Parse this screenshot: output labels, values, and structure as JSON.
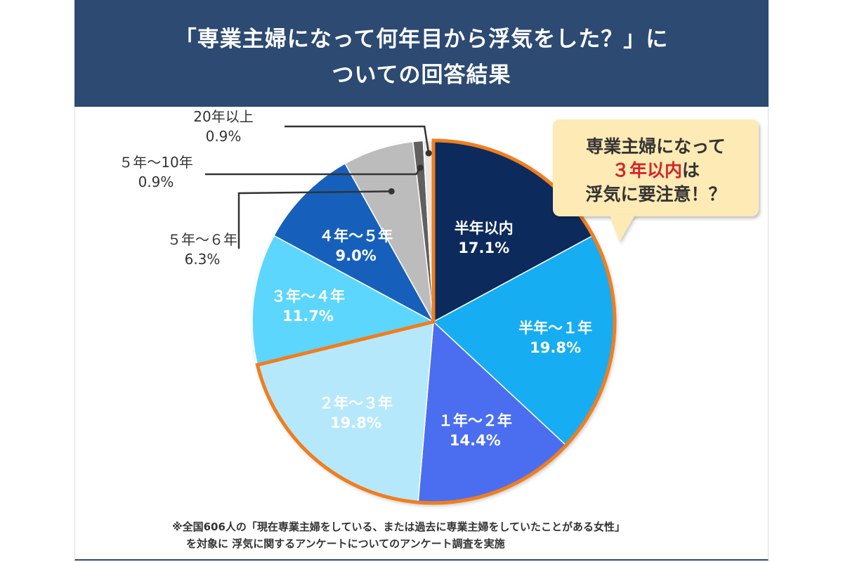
{
  "header": {
    "title_line1": "「専業主婦になって何年目から浮気をした？」に",
    "title_line2": "ついての回答結果"
  },
  "callout": {
    "line1": "専業主婦になって",
    "line2_highlight": "３年以内",
    "line2_rest": "は",
    "line3": "浮気に要注意！？"
  },
  "footnote": {
    "line1": "※全国606人の「現在専業主婦をしている、または過去に専業主婦をしていたことがある女性」",
    "line2": "を対象に 浮気に関するアンケートについてのアンケート調査を実施"
  },
  "colors": {
    "header_bg": "#2c4a72",
    "highlight_outline": "#f07e1e",
    "callout_bg": "#fdeab4",
    "callout_highlight": "#d0252b"
  },
  "chart_data": {
    "type": "pie",
    "unit": "%",
    "start": "12 o'clock",
    "direction": "clockwise",
    "highlighted_group": [
      "半年以内",
      "半年～１年",
      "１年～２年",
      "２年～３年"
    ],
    "slices": [
      {
        "label": "半年以内",
        "value": 17.1,
        "display": "17.1%",
        "color": "#0c2b5c",
        "text_color": "#ffffff",
        "label_position": "inside"
      },
      {
        "label": "半年～１年",
        "value": 19.8,
        "display": "19.8%",
        "color": "#15adf3",
        "text_color": "#ffffff",
        "label_position": "inside"
      },
      {
        "label": "１年～２年",
        "value": 14.4,
        "display": "14.4%",
        "color": "#4b6ef0",
        "text_color": "#ffffff",
        "label_position": "inside"
      },
      {
        "label": "２年～３年",
        "value": 19.8,
        "display": "19.8%",
        "color": "#b6e8fc",
        "text_color": "#ffffff",
        "label_position": "inside"
      },
      {
        "label": "３年～４年",
        "value": 11.7,
        "display": "11.7%",
        "color": "#5cd6fd",
        "text_color": "#ffffff",
        "label_position": "inside"
      },
      {
        "label": "４年～５年",
        "value": 9.0,
        "display": "9.0%",
        "color": "#1960bb",
        "text_color": "#ffffff",
        "label_position": "inside"
      },
      {
        "label": "５年～６年",
        "value": 6.3,
        "display": "6.3%",
        "color": "#bcbcbc",
        "text_color": "#333333",
        "label_position": "outside"
      },
      {
        "label": "５年～10年",
        "value": 0.9,
        "display": "0.9%",
        "color": "#606060",
        "text_color": "#333333",
        "label_position": "outside"
      },
      {
        "label": "20年以上",
        "value": 0.9,
        "display": "0.9%",
        "color": "#e6e6e6",
        "text_color": "#333333",
        "label_position": "outside"
      }
    ]
  }
}
